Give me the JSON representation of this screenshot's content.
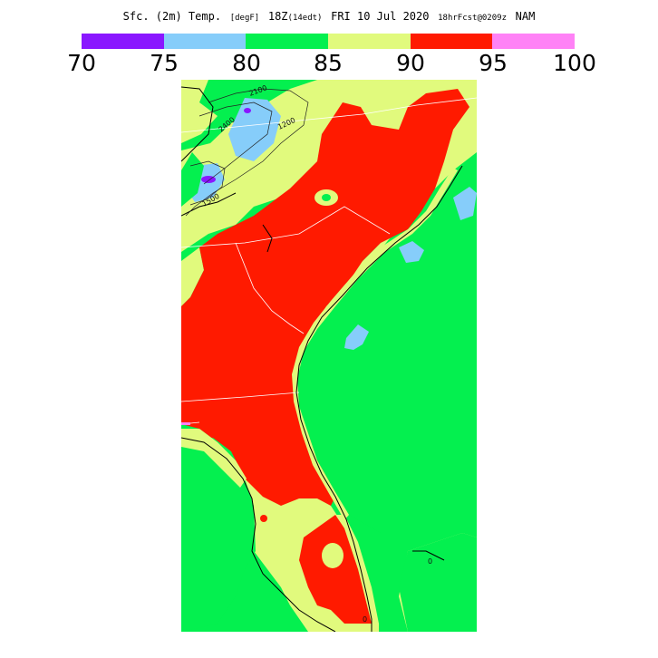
{
  "header": {
    "title_main": "Sfc. (2m) Temp.",
    "title_units": "[degF]",
    "title_time": "18Z",
    "title_local": "(14edt)",
    "title_date": "FRI 10 Jul 2020",
    "title_fcst": "18hrFcst@0209z",
    "title_model": "NAM"
  },
  "legend": {
    "colors": [
      "#8a17ff",
      "#86cdfa",
      "#04f04f",
      "#e1fa7d",
      "#ff1a00",
      "#ff82f6"
    ],
    "ticks": [
      "70",
      "75",
      "80",
      "85",
      "90",
      "95",
      "100"
    ]
  },
  "map": {
    "region": "Southeastern United States",
    "contour_labels": [
      "2100",
      "2400",
      "1200",
      "1500",
      "0",
      "0"
    ]
  }
}
